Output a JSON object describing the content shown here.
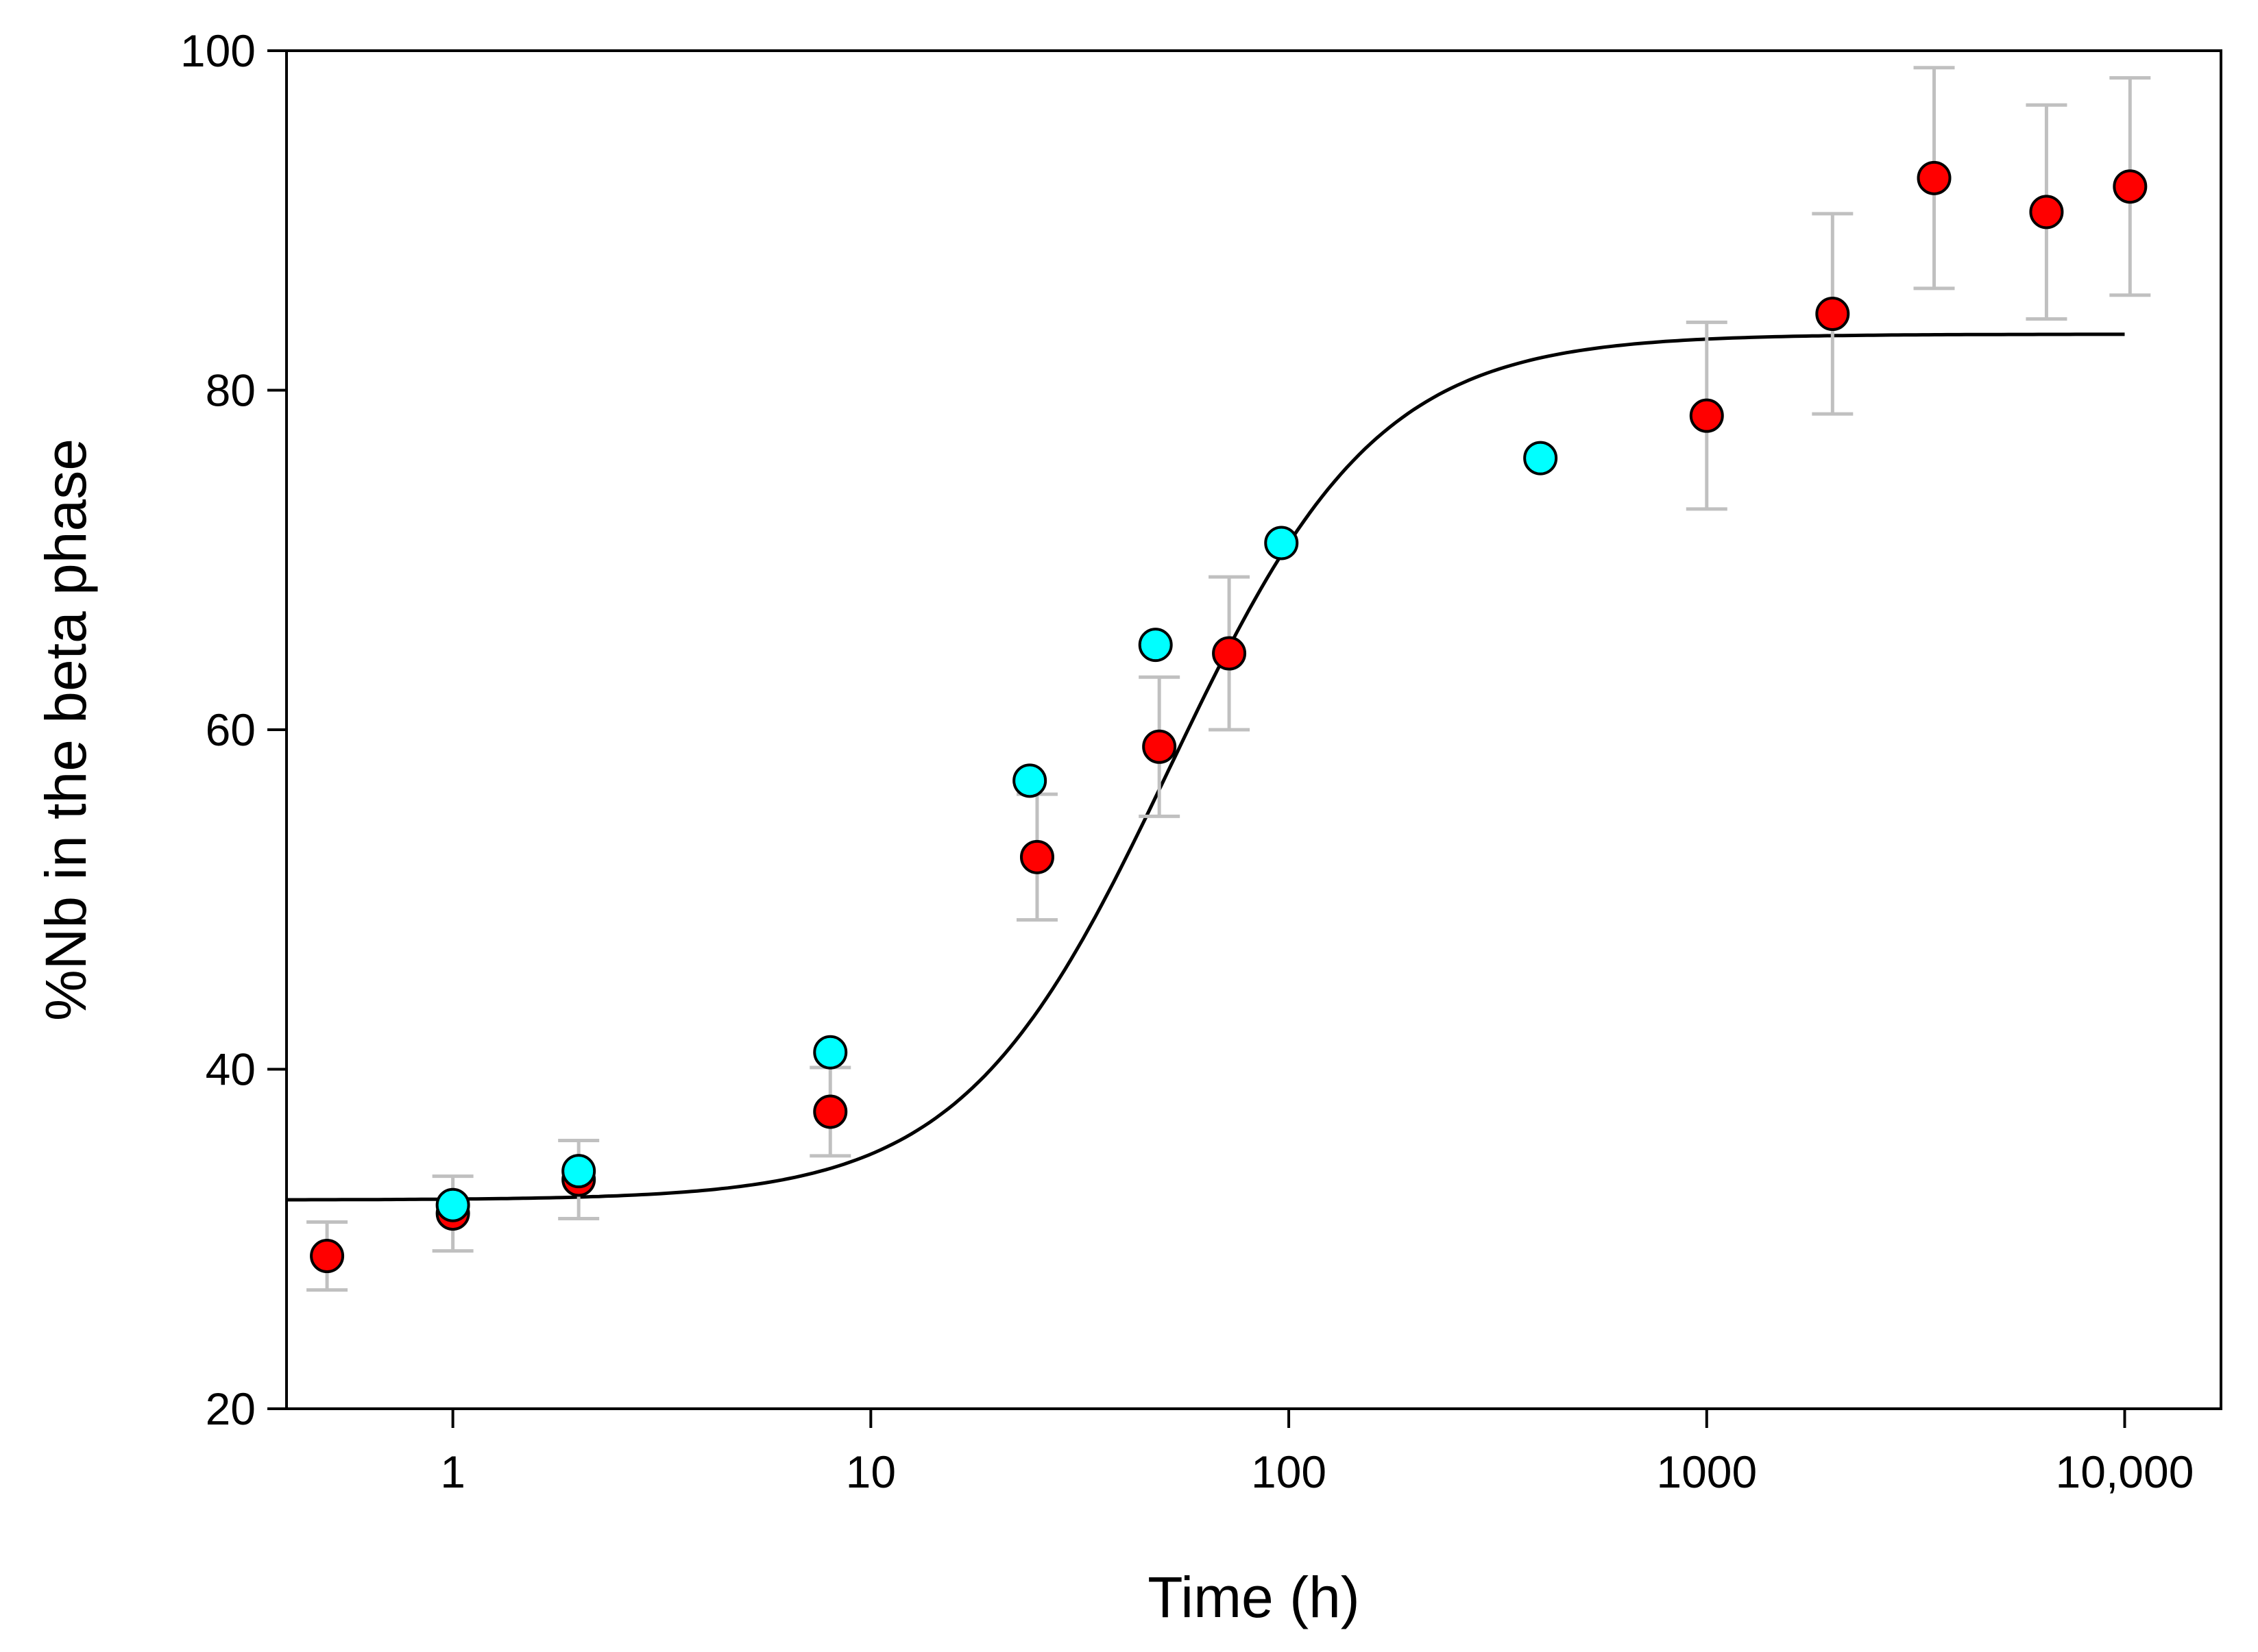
{
  "chart_data": {
    "type": "scatter",
    "title": "",
    "xlabel": "Time (h)",
    "ylabel": "%Nb in the beta phase",
    "xscale": "log",
    "xlim": [
      0.4,
      17000
    ],
    "ylim": [
      20,
      100
    ],
    "grid": false,
    "x_ticks": [
      {
        "value": 1,
        "label": "1"
      },
      {
        "value": 10,
        "label": "10"
      },
      {
        "value": 100,
        "label": "100"
      },
      {
        "value": 1000,
        "label": "1000"
      },
      {
        "value": 10000,
        "label": "10,000"
      }
    ],
    "y_ticks": [
      {
        "value": 20,
        "label": "20"
      },
      {
        "value": 40,
        "label": "40"
      },
      {
        "value": 60,
        "label": "60"
      },
      {
        "value": 80,
        "label": "80"
      },
      {
        "value": 100,
        "label": "100"
      }
    ],
    "colors": {
      "red": "#ff0000",
      "cyan": "#00ffff",
      "errorbar": "#c0c0c0",
      "fit": "#000000"
    },
    "series": [
      {
        "name": "red",
        "marker": "circle",
        "points": [
          {
            "x": 0.5,
            "y": 29.0,
            "err_low": 27.0,
            "err_high": 31.0
          },
          {
            "x": 1,
            "y": 31.5,
            "err_low": 29.3,
            "err_high": 33.7
          },
          {
            "x": 2,
            "y": 33.5,
            "err_low": 31.2,
            "err_high": 35.8
          },
          {
            "x": 8,
            "y": 37.5,
            "err_low": 34.9,
            "err_high": 40.1
          },
          {
            "x": 25,
            "y": 52.5,
            "err_low": 48.8,
            "err_high": 56.2
          },
          {
            "x": 49,
            "y": 59.0,
            "err_low": 54.9,
            "err_high": 63.1
          },
          {
            "x": 72,
            "y": 64.5,
            "err_low": 60.0,
            "err_high": 69.0
          },
          {
            "x": 1000,
            "y": 78.5,
            "err_low": 73.0,
            "err_high": 84.0
          },
          {
            "x": 2000,
            "y": 84.5,
            "err_low": 78.6,
            "err_high": 90.4
          },
          {
            "x": 3500,
            "y": 92.5,
            "err_low": 86.0,
            "err_high": 99.0
          },
          {
            "x": 6500,
            "y": 90.5,
            "err_low": 84.2,
            "err_high": 96.8
          },
          {
            "x": 10300,
            "y": 92.0,
            "err_low": 85.6,
            "err_high": 98.4
          }
        ]
      },
      {
        "name": "cyan",
        "marker": "circle",
        "points": [
          {
            "x": 1,
            "y": 32.0
          },
          {
            "x": 2,
            "y": 34.0
          },
          {
            "x": 8,
            "y": 41.0
          },
          {
            "x": 24,
            "y": 57.0
          },
          {
            "x": 48,
            "y": 65.0
          },
          {
            "x": 96,
            "y": 71.0
          },
          {
            "x": 400,
            "y": 76.0
          }
        ]
      }
    ],
    "fit_curve": {
      "type": "sigmoid",
      "x_range": [
        0.4,
        10000
      ],
      "y_min": 32.3,
      "y_max": 83.3,
      "x_mid": 52,
      "steepness": 1.75
    }
  }
}
